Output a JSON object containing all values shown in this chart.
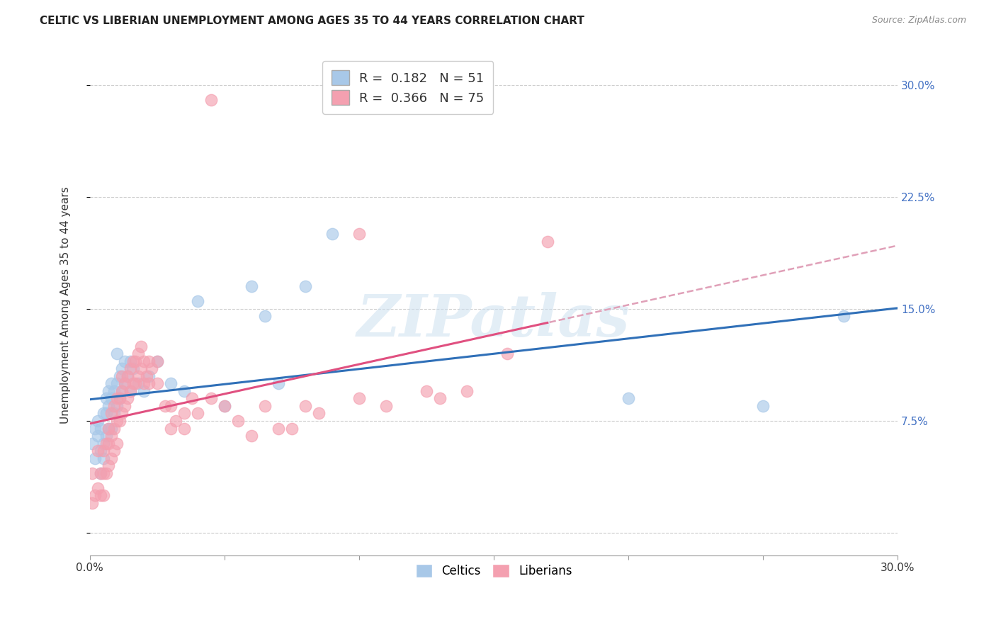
{
  "title": "CELTIC VS LIBERIAN UNEMPLOYMENT AMONG AGES 35 TO 44 YEARS CORRELATION CHART",
  "source": "Source: ZipAtlas.com",
  "ylabel": "Unemployment Among Ages 35 to 44 years",
  "xlim": [
    0.0,
    0.3
  ],
  "ylim": [
    -0.015,
    0.32
  ],
  "xtick_positions": [
    0.0,
    0.05,
    0.1,
    0.15,
    0.2,
    0.25,
    0.3
  ],
  "xticklabels": [
    "0.0%",
    "",
    "",
    "",
    "",
    "",
    "30.0%"
  ],
  "ytick_positions": [
    0.0,
    0.075,
    0.15,
    0.225,
    0.3
  ],
  "ytick_labels": [
    "",
    "7.5%",
    "15.0%",
    "22.5%",
    "30.0%"
  ],
  "celtics_R": 0.182,
  "celtics_N": 51,
  "liberians_R": 0.366,
  "liberians_N": 75,
  "celtics_color": "#a8c8e8",
  "liberians_color": "#f4a0b0",
  "trend_celtics_color": "#3070b8",
  "trend_liberians_solid_color": "#e05080",
  "trend_liberians_dash_color": "#e0a0b8",
  "background_color": "#ffffff",
  "grid_color": "#cccccc",
  "watermark_text": "ZIPatlas",
  "celtics_x": [
    0.001,
    0.002,
    0.002,
    0.003,
    0.003,
    0.004,
    0.004,
    0.004,
    0.005,
    0.005,
    0.005,
    0.006,
    0.006,
    0.006,
    0.007,
    0.007,
    0.007,
    0.008,
    0.008,
    0.008,
    0.009,
    0.009,
    0.01,
    0.01,
    0.01,
    0.011,
    0.011,
    0.012,
    0.012,
    0.013,
    0.013,
    0.014,
    0.015,
    0.015,
    0.016,
    0.018,
    0.02,
    0.022,
    0.025,
    0.03,
    0.035,
    0.04,
    0.05,
    0.06,
    0.065,
    0.07,
    0.08,
    0.09,
    0.2,
    0.25,
    0.28
  ],
  "celtics_y": [
    0.06,
    0.05,
    0.07,
    0.065,
    0.075,
    0.04,
    0.055,
    0.07,
    0.06,
    0.08,
    0.05,
    0.065,
    0.08,
    0.09,
    0.085,
    0.07,
    0.095,
    0.07,
    0.09,
    0.1,
    0.08,
    0.095,
    0.085,
    0.1,
    0.12,
    0.09,
    0.105,
    0.095,
    0.11,
    0.1,
    0.115,
    0.105,
    0.095,
    0.115,
    0.11,
    0.1,
    0.095,
    0.105,
    0.115,
    0.1,
    0.095,
    0.155,
    0.085,
    0.165,
    0.145,
    0.1,
    0.165,
    0.2,
    0.09,
    0.085,
    0.145
  ],
  "liberians_x": [
    0.001,
    0.001,
    0.002,
    0.003,
    0.003,
    0.004,
    0.004,
    0.005,
    0.005,
    0.005,
    0.006,
    0.006,
    0.007,
    0.007,
    0.007,
    0.008,
    0.008,
    0.008,
    0.009,
    0.009,
    0.009,
    0.01,
    0.01,
    0.01,
    0.011,
    0.011,
    0.012,
    0.012,
    0.012,
    0.013,
    0.013,
    0.014,
    0.014,
    0.015,
    0.015,
    0.016,
    0.016,
    0.017,
    0.017,
    0.018,
    0.018,
    0.019,
    0.019,
    0.02,
    0.02,
    0.021,
    0.022,
    0.022,
    0.023,
    0.025,
    0.025,
    0.028,
    0.03,
    0.03,
    0.032,
    0.035,
    0.035,
    0.038,
    0.04,
    0.045,
    0.05,
    0.055,
    0.06,
    0.065,
    0.07,
    0.075,
    0.08,
    0.085,
    0.1,
    0.11,
    0.125,
    0.13,
    0.14,
    0.155,
    0.17
  ],
  "liberians_y": [
    0.02,
    0.04,
    0.025,
    0.03,
    0.055,
    0.025,
    0.04,
    0.025,
    0.04,
    0.055,
    0.04,
    0.06,
    0.045,
    0.06,
    0.07,
    0.05,
    0.065,
    0.08,
    0.055,
    0.07,
    0.085,
    0.06,
    0.075,
    0.09,
    0.075,
    0.09,
    0.08,
    0.095,
    0.105,
    0.085,
    0.1,
    0.09,
    0.105,
    0.095,
    0.11,
    0.1,
    0.115,
    0.1,
    0.115,
    0.105,
    0.12,
    0.11,
    0.125,
    0.1,
    0.115,
    0.105,
    0.1,
    0.115,
    0.11,
    0.1,
    0.115,
    0.085,
    0.07,
    0.085,
    0.075,
    0.08,
    0.07,
    0.09,
    0.08,
    0.09,
    0.085,
    0.075,
    0.065,
    0.085,
    0.07,
    0.07,
    0.085,
    0.08,
    0.09,
    0.085,
    0.095,
    0.09,
    0.095,
    0.12,
    0.195
  ],
  "liberian_outlier_x": [
    0.045
  ],
  "liberian_outlier_y": [
    0.29
  ],
  "liberian_mid_outlier_x": [
    0.1
  ],
  "liberian_mid_outlier_y": [
    0.2
  ],
  "trend_solid_xmax": 0.17,
  "trend_dash_xmin": 0.17
}
